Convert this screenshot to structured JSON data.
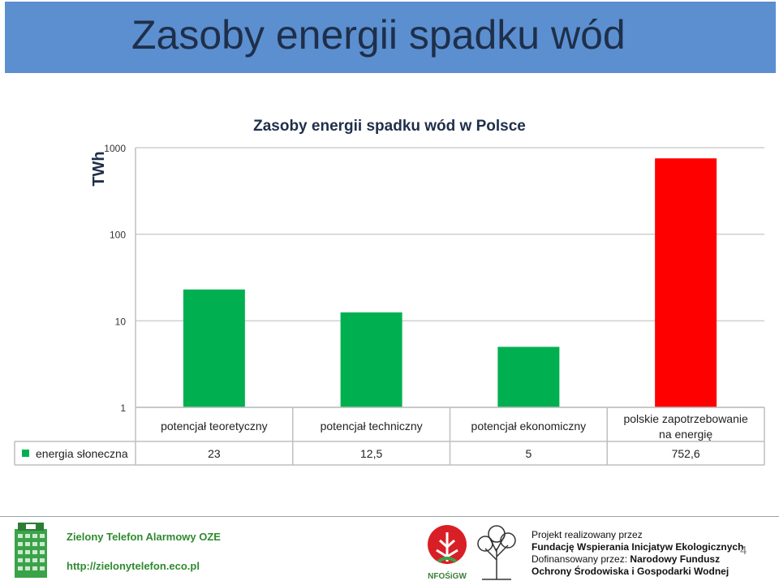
{
  "slide": {
    "title": "Zasoby energii spadku wód",
    "page_number": "4"
  },
  "chart_data": {
    "type": "bar",
    "title": "Zasoby energii spadku wód w Polsce",
    "ylabel": "TWh",
    "y_scale": "log",
    "ylim": [
      1,
      1000
    ],
    "y_ticks": [
      "1",
      "10",
      "100",
      "1000"
    ],
    "grid": true,
    "categories": [
      "potencjał teoretyczny",
      "potencjał techniczny",
      "potencjał ekonomiczny",
      "polskie zapotrzebowanie na energię"
    ],
    "series": [
      {
        "name": "energia słoneczna",
        "values": [
          23,
          12.5,
          5,
          752.6
        ]
      }
    ],
    "table_values": [
      "23",
      "12,5",
      "5",
      "752,6"
    ],
    "colors": [
      "#00b050",
      "#00b050",
      "#00b050",
      "#ff0000"
    ],
    "legend_swatch_color": "#00b050"
  },
  "footer": {
    "org_name": "Zielony Telefon Alarmowy OZE",
    "url": "http://zielonytelefon.eco.pl",
    "project_line": "Projekt realizowany przez",
    "foundation": "Fundację Wspierania Inicjatyw Ekologicznych",
    "cofinanced_prefix": "Dofinansowany przez: ",
    "fund_part1": "Narodowy Fundusz",
    "fund_part2": "Ochrony Środowiska i Gospodarki Wodnej",
    "logo_text": "NFOŚiGW"
  }
}
